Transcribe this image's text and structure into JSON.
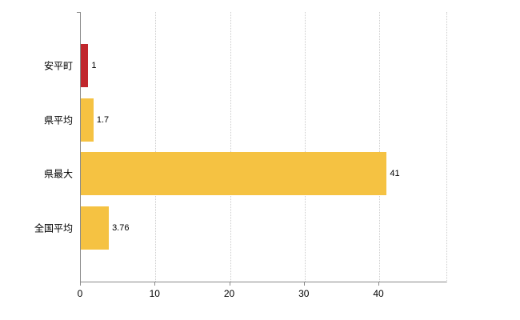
{
  "chart_data": {
    "type": "bar",
    "orientation": "horizontal",
    "title": "",
    "xlabel": "",
    "ylabel": "",
    "categories": [
      "安平町",
      "県平均",
      "県最大",
      "全国平均"
    ],
    "values": [
      1,
      1.7,
      41,
      3.76
    ],
    "value_labels": [
      "1",
      "1.7",
      "41",
      "3.76"
    ],
    "bar_colors": [
      "#c1272d",
      "#f5c242",
      "#f5c242",
      "#f5c242"
    ],
    "xlim": [
      0,
      49
    ],
    "xticks": [
      0,
      10,
      20,
      30,
      40
    ],
    "grid": "vertical-dotted",
    "legend": "none"
  },
  "colors": {
    "bar_default": "#f5c242",
    "bar_highlight": "#c1272d",
    "axis": "#8a8a8a",
    "grid": "#cccccc",
    "text": "#000000",
    "background": "#ffffff"
  }
}
